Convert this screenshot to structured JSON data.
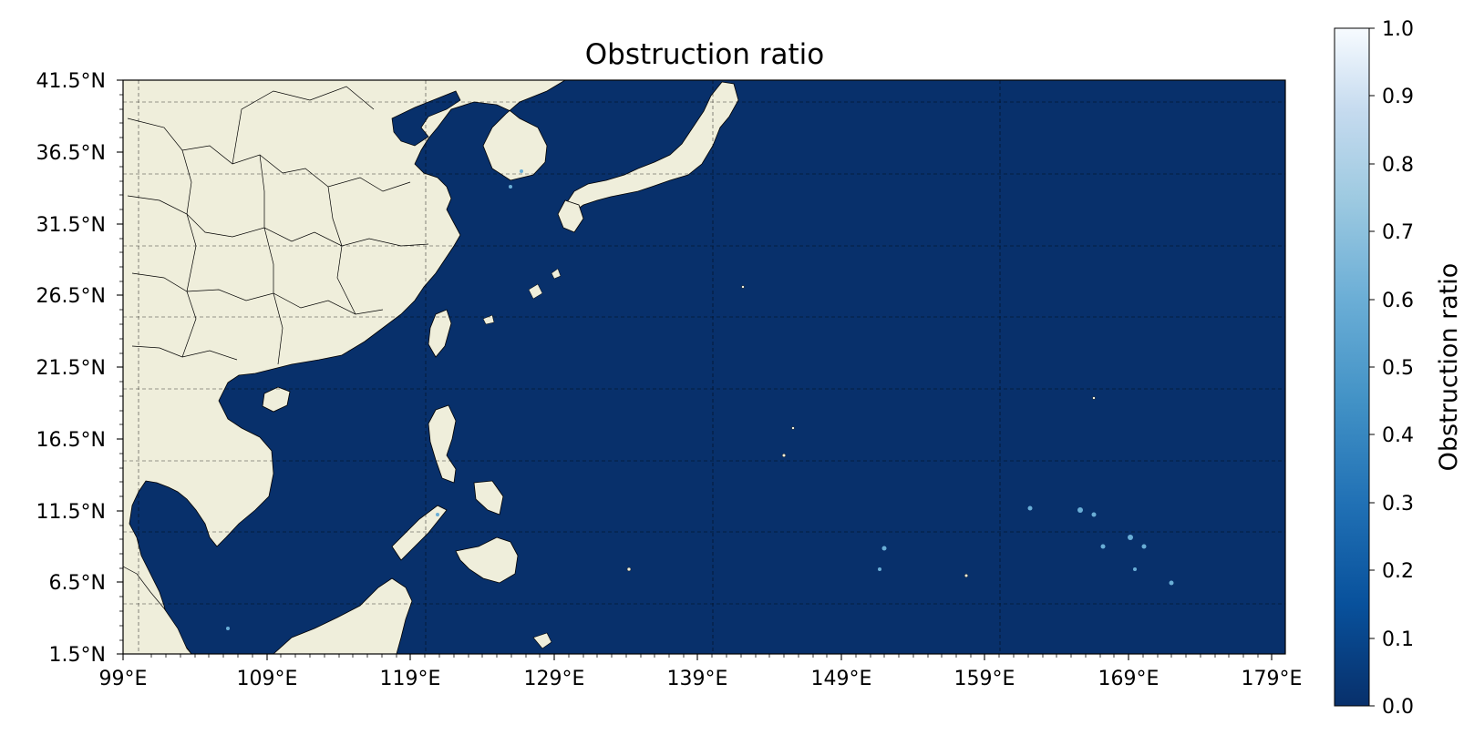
{
  "title": "Obstruction ratio",
  "map": {
    "lon_range_deg_e": [
      99,
      180
    ],
    "lat_range_deg_n": [
      1.5,
      41.5
    ],
    "gridlines": true,
    "ocean_color": "#08306b",
    "land_color": "#efeedb",
    "x_ticks": [
      "99°E",
      "109°E",
      "119°E",
      "129°E",
      "139°E",
      "149°E",
      "159°E",
      "169°E",
      "179°E"
    ],
    "y_ticks": [
      "41.5°N",
      "36.5°N",
      "31.5°N",
      "26.5°N",
      "21.5°N",
      "16.5°N",
      "11.5°N",
      "6.5°N",
      "1.5°N"
    ]
  },
  "colorbar": {
    "label": "Obstruction ratio",
    "colormap": "Blues_r",
    "range": [
      0.0,
      1.0
    ],
    "ticks": [
      "1.0",
      "0.9",
      "0.8",
      "0.7",
      "0.6",
      "0.5",
      "0.4",
      "0.3",
      "0.2",
      "0.1",
      "0.0"
    ],
    "colors": {
      "low": "#08306b",
      "mid": "#6aaed6",
      "high": "#f7fbff"
    }
  }
}
